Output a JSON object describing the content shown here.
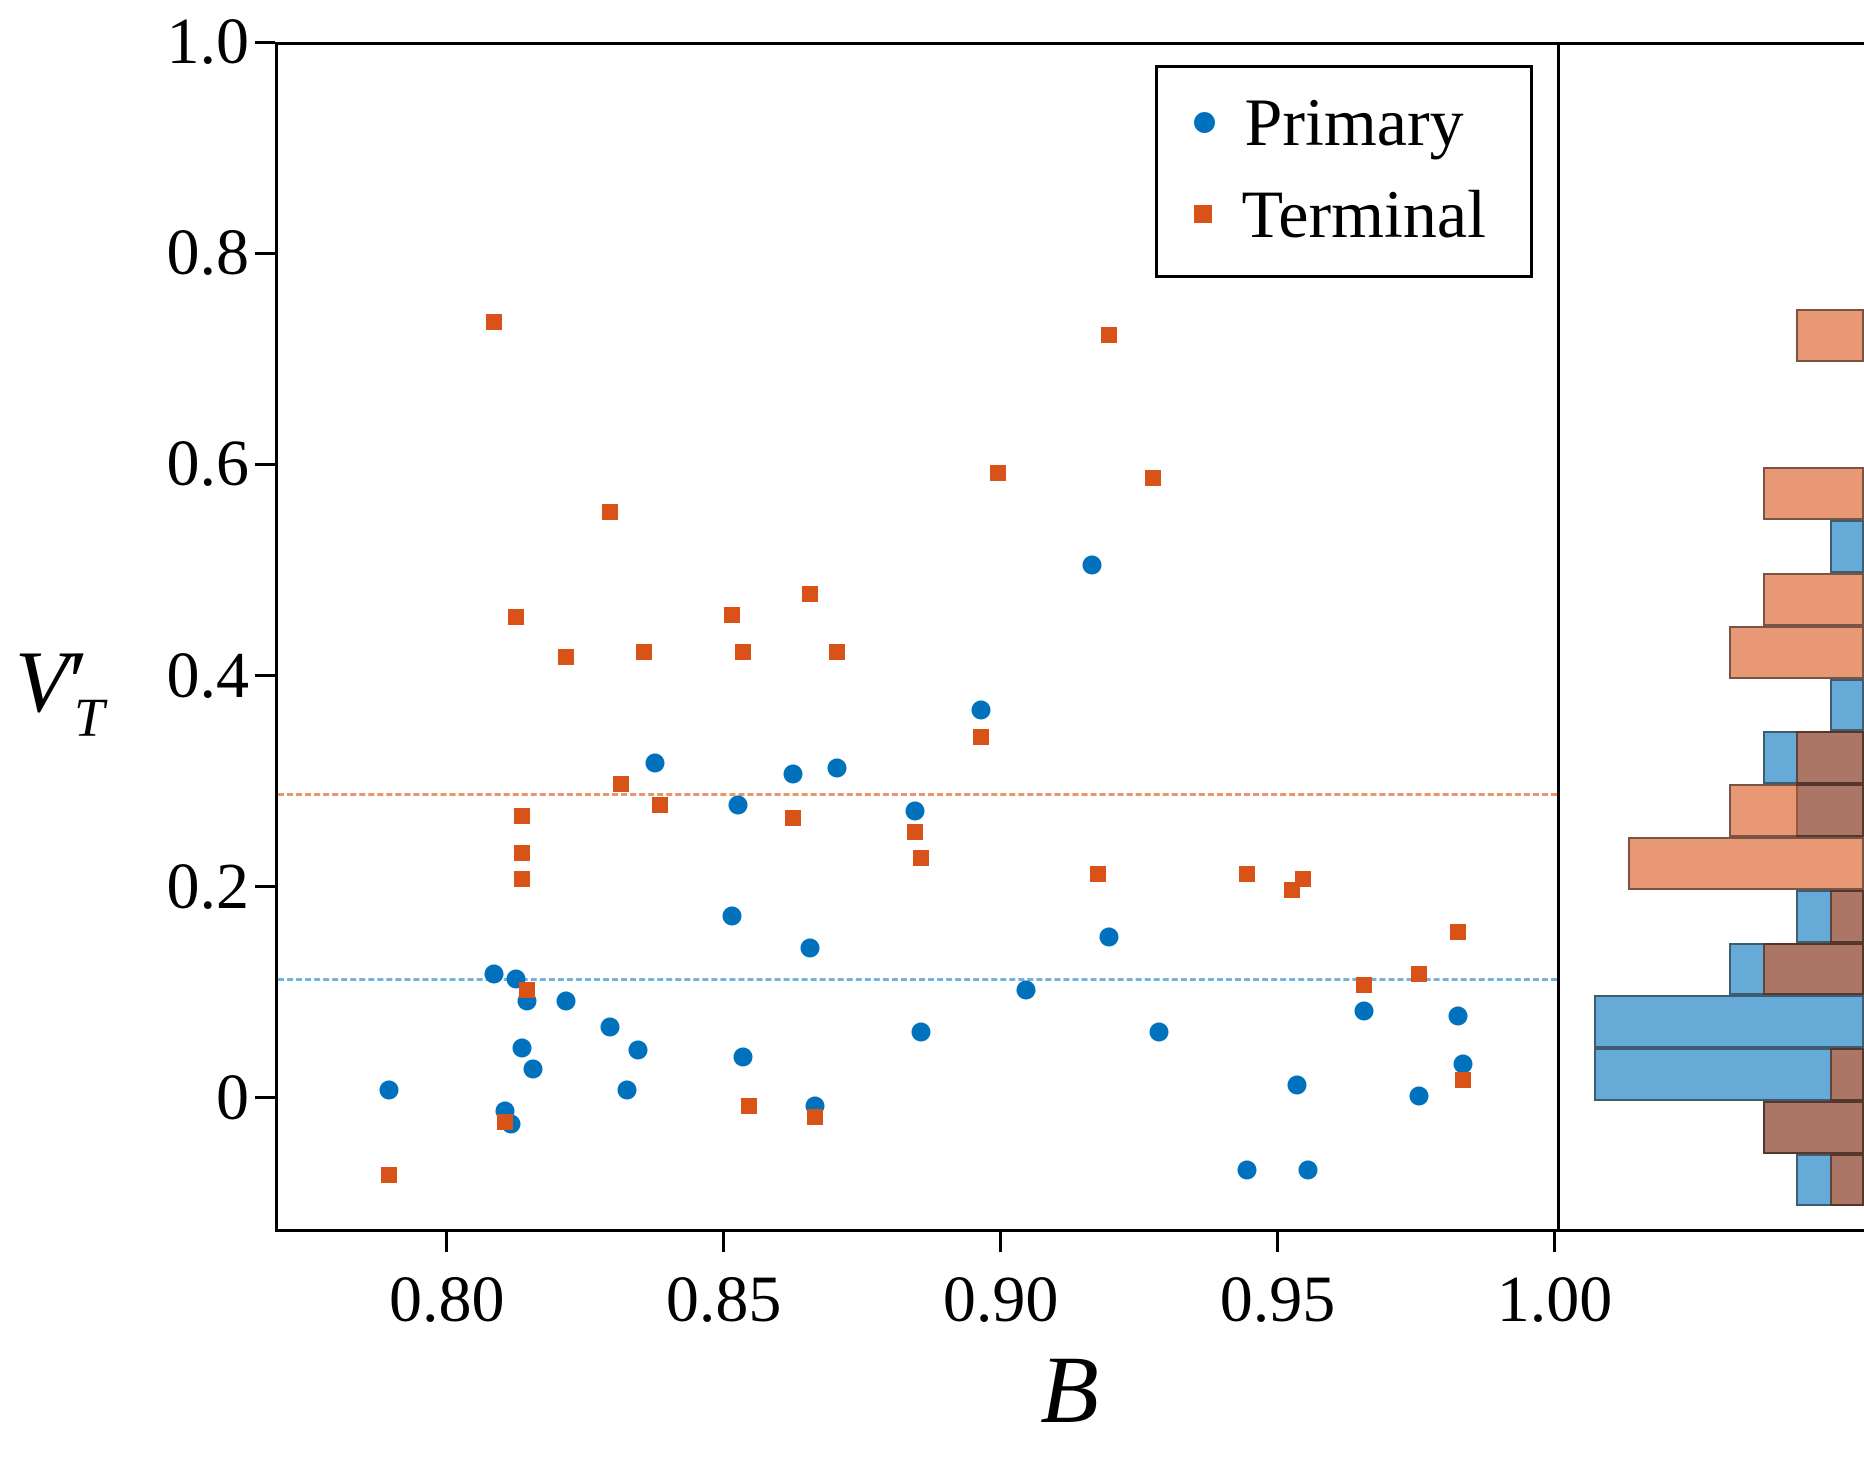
{
  "figure": {
    "background": "#ffffff"
  },
  "axes": {
    "xlabel": "B",
    "ylabel": {
      "base": "V",
      "prime": "′",
      "subscript": "T"
    },
    "x_tick_labels": [
      "0.80",
      "0.85",
      "0.90",
      "0.95",
      "1.00"
    ],
    "x_tick_values": [
      0.8,
      0.85,
      0.9,
      0.95,
      1.0
    ],
    "y_tick_labels": [
      "1.0",
      "0.8",
      "0.6",
      "0.4",
      "0.2",
      "0"
    ],
    "y_tick_values": [
      1.0,
      0.8,
      0.6,
      0.4,
      0.2,
      0.0
    ],
    "x_range": [
      0.769,
      1.001
    ],
    "y_range": [
      -0.127,
      1.0
    ]
  },
  "legend": {
    "items": [
      {
        "label": "Primary",
        "marker": "circle",
        "color": "#0072BD"
      },
      {
        "label": "Terminal",
        "marker": "square",
        "color": "#D95319"
      }
    ]
  },
  "chart_data": {
    "type": "scatter",
    "xlabel": "B",
    "ylabel": "V'_T",
    "xlim": [
      0.769,
      1.001
    ],
    "ylim": [
      -0.127,
      1.0
    ],
    "grid": false,
    "legend_position": "upper right",
    "series": [
      {
        "name": "Primary",
        "marker": "circle",
        "color": "#0072BD",
        "points": [
          [
            0.789,
            0.01
          ],
          [
            0.808,
            0.12
          ],
          [
            0.81,
            -0.01
          ],
          [
            0.811,
            -0.022
          ],
          [
            0.812,
            0.115
          ],
          [
            0.813,
            0.05
          ],
          [
            0.814,
            0.095
          ],
          [
            0.815,
            0.03
          ],
          [
            0.821,
            0.095
          ],
          [
            0.829,
            0.07
          ],
          [
            0.832,
            0.01
          ],
          [
            0.834,
            0.048
          ],
          [
            0.837,
            0.32
          ],
          [
            0.851,
            0.175
          ],
          [
            0.852,
            0.28
          ],
          [
            0.853,
            0.042
          ],
          [
            0.862,
            0.31
          ],
          [
            0.865,
            0.145
          ],
          [
            0.866,
            -0.005
          ],
          [
            0.87,
            0.315
          ],
          [
            0.884,
            0.275
          ],
          [
            0.885,
            0.065
          ],
          [
            0.896,
            0.37
          ],
          [
            0.904,
            0.105
          ],
          [
            0.916,
            0.508
          ],
          [
            0.919,
            0.155
          ],
          [
            0.928,
            0.065
          ],
          [
            0.944,
            -0.065
          ],
          [
            0.953,
            0.015
          ],
          [
            0.955,
            -0.065
          ],
          [
            0.965,
            0.085
          ],
          [
            0.975,
            0.005
          ],
          [
            0.982,
            0.08
          ],
          [
            0.983,
            0.035
          ]
        ]
      },
      {
        "name": "Terminal",
        "marker": "square",
        "color": "#D95319",
        "points": [
          [
            0.789,
            -0.07
          ],
          [
            0.808,
            0.738
          ],
          [
            0.81,
            -0.02
          ],
          [
            0.812,
            0.458
          ],
          [
            0.813,
            0.27
          ],
          [
            0.813,
            0.235
          ],
          [
            0.813,
            0.21
          ],
          [
            0.814,
            0.105
          ],
          [
            0.821,
            0.42
          ],
          [
            0.829,
            0.558
          ],
          [
            0.831,
            0.3
          ],
          [
            0.835,
            0.425
          ],
          [
            0.838,
            0.28
          ],
          [
            0.851,
            0.46
          ],
          [
            0.853,
            0.425
          ],
          [
            0.854,
            -0.005
          ],
          [
            0.862,
            0.268
          ],
          [
            0.865,
            0.48
          ],
          [
            0.866,
            -0.015
          ],
          [
            0.87,
            0.425
          ],
          [
            0.884,
            0.255
          ],
          [
            0.885,
            0.23
          ],
          [
            0.896,
            0.345
          ],
          [
            0.899,
            0.595
          ],
          [
            0.917,
            0.215
          ],
          [
            0.919,
            0.725
          ],
          [
            0.927,
            0.59
          ],
          [
            0.944,
            0.215
          ],
          [
            0.952,
            0.2
          ],
          [
            0.954,
            0.21
          ],
          [
            0.965,
            0.11
          ],
          [
            0.975,
            0.12
          ],
          [
            0.982,
            0.16
          ],
          [
            0.983,
            0.02
          ]
        ]
      }
    ],
    "reference_lines": [
      {
        "series": "Terminal",
        "y": 0.29,
        "style": "dashed",
        "color": "#E8976B"
      },
      {
        "series": "Primary",
        "y": 0.115,
        "style": "dashed",
        "color": "#74B3DD"
      }
    ],
    "marginal_histogram": {
      "orientation": "horizontal-right-anchored",
      "bin_width": 0.05,
      "max_count_scale": 9,
      "series": [
        {
          "name": "Primary",
          "color": "#0072BD",
          "fill": "rgba(0,114,189,0.6)",
          "bins": [
            {
              "y0": -0.1,
              "count": 2
            },
            {
              "y0": -0.05,
              "count": 3
            },
            {
              "y0": 0.0,
              "count": 8
            },
            {
              "y0": 0.05,
              "count": 8
            },
            {
              "y0": 0.1,
              "count": 4
            },
            {
              "y0": 0.15,
              "count": 2
            },
            {
              "y0": 0.25,
              "count": 2
            },
            {
              "y0": 0.3,
              "count": 3
            },
            {
              "y0": 0.35,
              "count": 1
            },
            {
              "y0": 0.5,
              "count": 1
            }
          ]
        },
        {
          "name": "Terminal",
          "color": "#D95319",
          "fill": "rgba(217,83,25,0.6)",
          "bins": [
            {
              "y0": -0.1,
              "count": 1
            },
            {
              "y0": -0.05,
              "count": 3
            },
            {
              "y0": 0.0,
              "count": 1
            },
            {
              "y0": 0.1,
              "count": 3
            },
            {
              "y0": 0.15,
              "count": 1
            },
            {
              "y0": 0.2,
              "count": 7
            },
            {
              "y0": 0.25,
              "count": 4
            },
            {
              "y0": 0.3,
              "count": 2
            },
            {
              "y0": 0.4,
              "count": 4
            },
            {
              "y0": 0.45,
              "count": 3
            },
            {
              "y0": 0.55,
              "count": 3
            },
            {
              "y0": 0.7,
              "count": 2
            }
          ]
        }
      ]
    }
  }
}
